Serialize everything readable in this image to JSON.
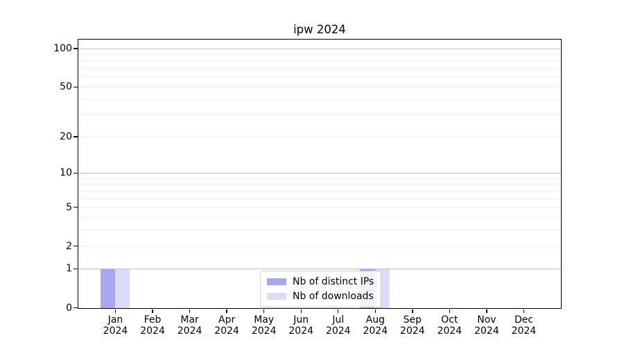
{
  "title": "ipw 2024",
  "chart_data": {
    "type": "bar",
    "title": "ipw 2024",
    "categories": [
      "Jan 2024",
      "Feb 2024",
      "Mar 2024",
      "Apr 2024",
      "May 2024",
      "Jun 2024",
      "Jul 2024",
      "Aug 2024",
      "Sep 2024",
      "Oct 2024",
      "Nov 2024",
      "Dec 2024"
    ],
    "series": [
      {
        "name": "Nb of distinct IPs",
        "color": "#a8a8f2",
        "values": [
          1,
          0,
          0,
          0,
          0,
          0,
          0,
          1,
          0,
          0,
          0,
          0
        ]
      },
      {
        "name": "Nb of downloads",
        "color": "#dcdcf8",
        "values": [
          1,
          0,
          0,
          0,
          0,
          0,
          0,
          1,
          0,
          0,
          0,
          0
        ]
      }
    ],
    "xlabel": "",
    "ylabel": "",
    "yscale": "log10(1+y)",
    "ylim": [
      0,
      118
    ],
    "yticks_labeled": [
      0,
      1,
      2,
      5,
      10,
      20,
      50,
      100
    ],
    "gridlines_major": [
      1,
      10,
      100
    ],
    "gridlines_minor": [
      2,
      3,
      4,
      5,
      6,
      7,
      8,
      9,
      20,
      30,
      40,
      50,
      60,
      70,
      80,
      90
    ],
    "grid": "horizontal",
    "legend_position": "lower center inside plot"
  },
  "colors": {
    "bar_distinct_ips": "#a8a8f2",
    "bar_downloads": "#dcdcf8",
    "grid_major": "#bdbdbd",
    "grid_minor": "#ededed",
    "spine": "#000000",
    "legend_border": "#cccccc"
  }
}
